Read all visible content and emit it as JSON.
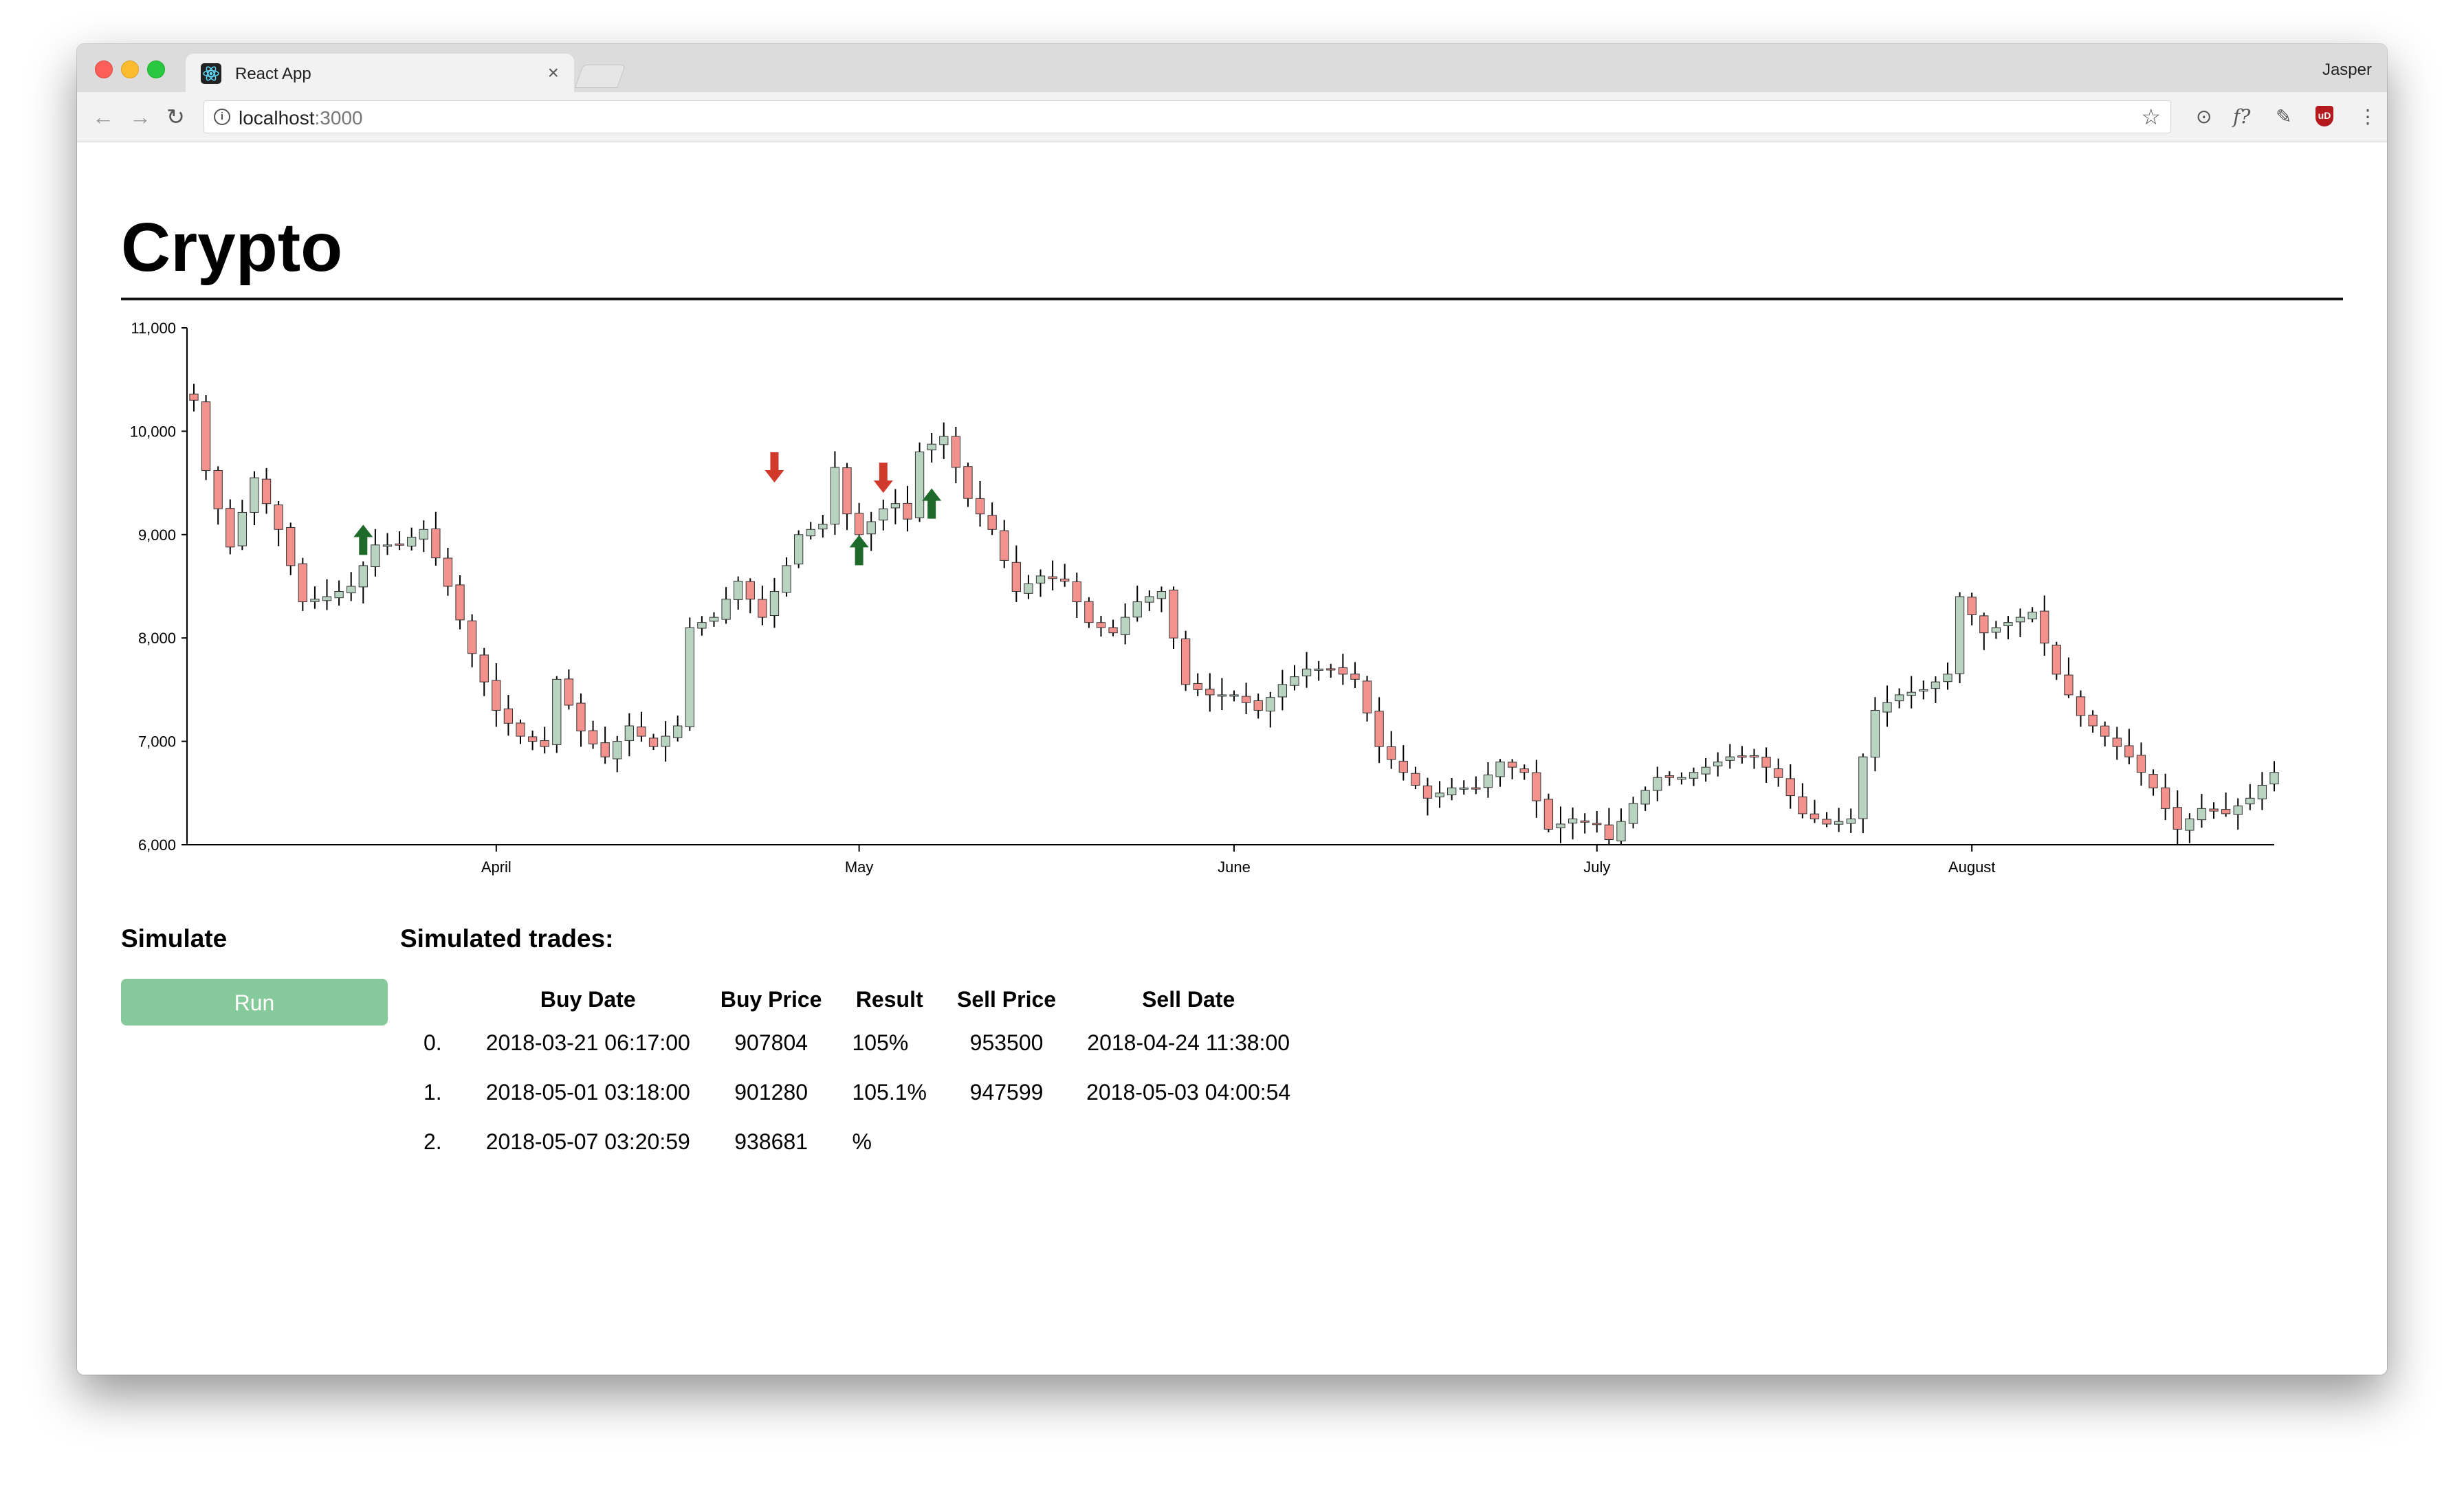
{
  "browser": {
    "tab_title": "React App",
    "tab_close": "×",
    "profile_name": "Jasper",
    "url_host": "localhost",
    "url_port": ":3000",
    "info_glyph": "i",
    "ext_icons": [
      "upload-icon",
      "formula-icon",
      "eyedropper-icon",
      "ublock-icon",
      "menu-icon"
    ],
    "ext_labels": [
      "⊙",
      "f?",
      "✎",
      "uD",
      "⋮"
    ]
  },
  "page": {
    "title": "Crypto"
  },
  "simulate": {
    "heading": "Simulate",
    "run_label": "Run"
  },
  "trades": {
    "heading": "Simulated trades:",
    "columns": [
      "",
      "Buy Date",
      "Buy Price",
      "Result",
      "Sell Price",
      "Sell Date"
    ],
    "rows": [
      {
        "index": "0.",
        "buy_date": "2018-03-21 06:17:00",
        "buy_price": "907804",
        "result": "105%",
        "sell_price": "953500",
        "sell_date": "2018-04-24 11:38:00"
      },
      {
        "index": "1.",
        "buy_date": "2018-05-01 03:18:00",
        "buy_price": "901280",
        "result": "105.1%",
        "sell_price": "947599",
        "sell_date": "2018-05-03 04:00:54"
      },
      {
        "index": "2.",
        "buy_date": "2018-05-07 03:20:59",
        "buy_price": "938681",
        "result": "%",
        "sell_price": "",
        "sell_date": ""
      }
    ]
  },
  "colors": {
    "up": "#b9d3c1",
    "down": "#f3918d",
    "buy_arrow": "#1d6a2a",
    "sell_arrow": "#d13a2b",
    "run_button": "#86c99a"
  },
  "chart_data": {
    "type": "candlestick",
    "y_ticks": [
      6000,
      7000,
      8000,
      9000,
      10000,
      11000
    ],
    "y_tick_labels": [
      "6,000",
      "7,000",
      "8,000",
      "9,000",
      "10,000",
      "11,000"
    ],
    "ylim": [
      6000,
      11000
    ],
    "x_tick_labels": [
      "April",
      "May",
      "June",
      "July",
      "August"
    ],
    "x_tick_dates": [
      "2018-04-01",
      "2018-05-01",
      "2018-06-01",
      "2018-07-01",
      "2018-08-01"
    ],
    "date_range": [
      "2018-03-07",
      "2018-08-26"
    ],
    "grid": false,
    "close_anchors": [
      [
        "2018-03-07",
        10300
      ],
      [
        "2018-03-08",
        9620
      ],
      [
        "2018-03-10",
        8880
      ],
      [
        "2018-03-12",
        9550
      ],
      [
        "2018-03-14",
        9050
      ],
      [
        "2018-03-16",
        8350
      ],
      [
        "2018-03-18",
        8400
      ],
      [
        "2018-03-20",
        8500
      ],
      [
        "2018-03-22",
        8900
      ],
      [
        "2018-03-24",
        8900
      ],
      [
        "2018-03-26",
        9050
      ],
      [
        "2018-03-28",
        8500
      ],
      [
        "2018-03-30",
        7850
      ],
      [
        "2018-04-01",
        7300
      ],
      [
        "2018-04-03",
        7050
      ],
      [
        "2018-04-05",
        6950
      ],
      [
        "2018-04-06",
        7600
      ],
      [
        "2018-04-08",
        7100
      ],
      [
        "2018-04-10",
        6850
      ],
      [
        "2018-04-12",
        7150
      ],
      [
        "2018-04-14",
        6950
      ],
      [
        "2018-04-16",
        7150
      ],
      [
        "2018-04-17",
        8100
      ],
      [
        "2018-04-19",
        8200
      ],
      [
        "2018-04-21",
        8550
      ],
      [
        "2018-04-23",
        8200
      ],
      [
        "2018-04-25",
        8700
      ],
      [
        "2018-04-26",
        9000
      ],
      [
        "2018-04-28",
        9100
      ],
      [
        "2018-04-29",
        9650
      ],
      [
        "2018-04-30",
        9200
      ],
      [
        "2018-05-01",
        9000
      ],
      [
        "2018-05-03",
        9250
      ],
      [
        "2018-05-04",
        9300
      ],
      [
        "2018-05-05",
        9150
      ],
      [
        "2018-05-06",
        9800
      ],
      [
        "2018-05-08",
        9950
      ],
      [
        "2018-05-10",
        9350
      ],
      [
        "2018-05-12",
        9050
      ],
      [
        "2018-05-14",
        8450
      ],
      [
        "2018-05-16",
        8600
      ],
      [
        "2018-05-18",
        8550
      ],
      [
        "2018-05-20",
        8150
      ],
      [
        "2018-05-22",
        8050
      ],
      [
        "2018-05-24",
        8350
      ],
      [
        "2018-05-26",
        8450
      ],
      [
        "2018-05-28",
        7550
      ],
      [
        "2018-05-30",
        7450
      ],
      [
        "2018-06-01",
        7450
      ],
      [
        "2018-06-03",
        7300
      ],
      [
        "2018-06-05",
        7550
      ],
      [
        "2018-06-07",
        7700
      ],
      [
        "2018-06-09",
        7700
      ],
      [
        "2018-06-11",
        7600
      ],
      [
        "2018-06-13",
        6950
      ],
      [
        "2018-06-15",
        6700
      ],
      [
        "2018-06-17",
        6450
      ],
      [
        "2018-06-19",
        6550
      ],
      [
        "2018-06-21",
        6550
      ],
      [
        "2018-06-23",
        6800
      ],
      [
        "2018-06-25",
        6700
      ],
      [
        "2018-06-27",
        6150
      ],
      [
        "2018-06-29",
        6250
      ],
      [
        "2018-07-01",
        6200
      ],
      [
        "2018-07-02",
        6050
      ],
      [
        "2018-07-04",
        6400
      ],
      [
        "2018-07-06",
        6650
      ],
      [
        "2018-07-08",
        6650
      ],
      [
        "2018-07-10",
        6750
      ],
      [
        "2018-07-12",
        6850
      ],
      [
        "2018-07-14",
        6850
      ],
      [
        "2018-07-16",
        6650
      ],
      [
        "2018-07-18",
        6300
      ],
      [
        "2018-07-20",
        6200
      ],
      [
        "2018-07-22",
        6250
      ],
      [
        "2018-07-23",
        6850
      ],
      [
        "2018-07-24",
        7300
      ],
      [
        "2018-07-26",
        7450
      ],
      [
        "2018-07-28",
        7500
      ],
      [
        "2018-07-30",
        7650
      ],
      [
        "2018-07-31",
        8400
      ],
      [
        "2018-08-02",
        8050
      ],
      [
        "2018-08-04",
        8150
      ],
      [
        "2018-08-06",
        8250
      ],
      [
        "2018-08-08",
        7650
      ],
      [
        "2018-08-10",
        7250
      ],
      [
        "2018-08-12",
        7050
      ],
      [
        "2018-08-14",
        6850
      ],
      [
        "2018-08-16",
        6550
      ],
      [
        "2018-08-18",
        6150
      ],
      [
        "2018-08-20",
        6350
      ],
      [
        "2018-08-22",
        6300
      ],
      [
        "2018-08-24",
        6450
      ],
      [
        "2018-08-26",
        6700
      ]
    ],
    "buy_markers": [
      {
        "date": "2018-03-21",
        "price": 8950
      },
      {
        "date": "2018-05-01",
        "price": 8850
      },
      {
        "date": "2018-05-07",
        "price": 9300
      }
    ],
    "sell_markers": [
      {
        "date": "2018-04-24",
        "price": 9650
      },
      {
        "date": "2018-05-03",
        "price": 9550
      }
    ]
  }
}
